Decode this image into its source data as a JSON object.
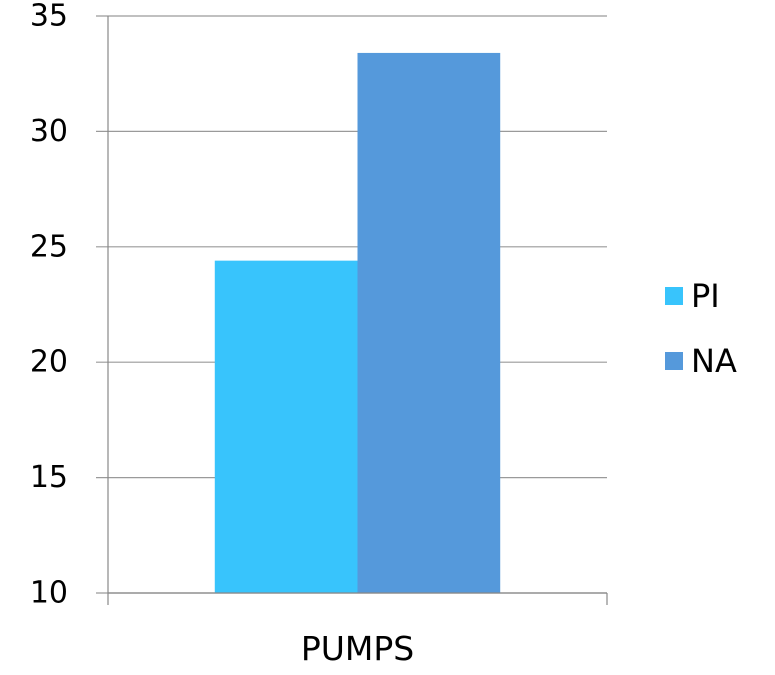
{
  "chart_data": {
    "type": "bar",
    "categories": [
      "PUMPS"
    ],
    "series": [
      {
        "name": "PI",
        "values": [
          24.4
        ],
        "color": "#38C4FC"
      },
      {
        "name": "NA",
        "values": [
          33.4
        ],
        "color": "#5599DB"
      }
    ],
    "yticks": [
      "10",
      "15",
      "20",
      "25",
      "30",
      "35"
    ],
    "ylim": [
      10,
      35
    ],
    "grid": true,
    "legend_position": "right",
    "title": "",
    "xlabel": "",
    "ylabel": ""
  }
}
